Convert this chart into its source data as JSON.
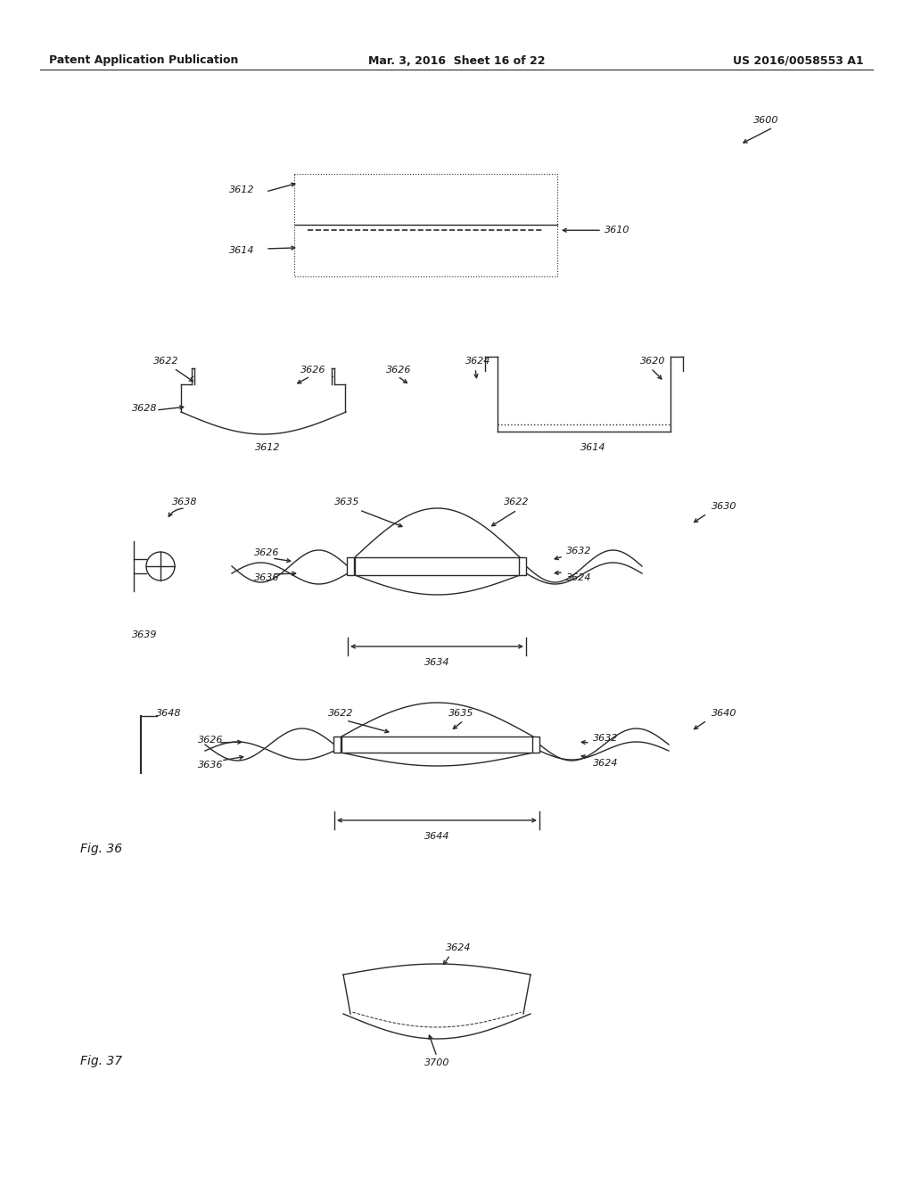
{
  "bg_color": "#ffffff",
  "text_color": "#1a1a1a",
  "header_left": "Patent Application Publication",
  "header_mid": "Mar. 3, 2016  Sheet 16 of 22",
  "header_right": "US 2016/0058553 A1",
  "fig36_label": "Fig. 36",
  "fig37_label": "Fig. 37",
  "line_color": "#2a2a2a",
  "font_size": 8.0
}
